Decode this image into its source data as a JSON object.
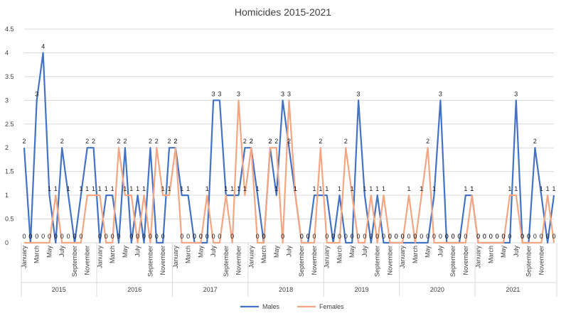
{
  "chart_data": {
    "type": "line",
    "title": "Homicides 2015-2021",
    "xlabel": "",
    "ylabel": "",
    "ylim": [
      0,
      4.5
    ],
    "yticks": [
      "0",
      "0.5",
      "1",
      "1.5",
      "2",
      "2.5",
      "3",
      "3.5",
      "4",
      "4.5"
    ],
    "years": [
      "2015",
      "2016",
      "2017",
      "2018",
      "2019",
      "2020",
      "2021"
    ],
    "month_tick_labels": [
      "January",
      "March",
      "May",
      "July",
      "September",
      "November"
    ],
    "grid": true,
    "legend_position": "bottom",
    "series": [
      {
        "name": "Males",
        "color": "#4472C4",
        "values": [
          2,
          0,
          3,
          4,
          1,
          0,
          2,
          1,
          0,
          1,
          2,
          2,
          0,
          1,
          1,
          0,
          2,
          0,
          1,
          0,
          2,
          0,
          0,
          2,
          2,
          1,
          1,
          0,
          0,
          0,
          3,
          3,
          1,
          1,
          1,
          2,
          2,
          1,
          0,
          2,
          1,
          3,
          2,
          1,
          0,
          0,
          1,
          1,
          1,
          0,
          1,
          0,
          0,
          3,
          1,
          0,
          1,
          0,
          0,
          0,
          0,
          0,
          0,
          0,
          0,
          1,
          3,
          0,
          0,
          0,
          1,
          1,
          0,
          0,
          0,
          0,
          0,
          0,
          3,
          0,
          0,
          2,
          1,
          0,
          1
        ]
      },
      {
        "name": "Females",
        "color": "#F4A582",
        "values": [
          0,
          0,
          0,
          0,
          0,
          1,
          0,
          0,
          0,
          0,
          1,
          1,
          1,
          0,
          0,
          2,
          1,
          1,
          0,
          1,
          0,
          2,
          1,
          1,
          2,
          0,
          0,
          0,
          0,
          1,
          0,
          0,
          1,
          0,
          3,
          1,
          2,
          0,
          0,
          2,
          2,
          0,
          3,
          1,
          0,
          0,
          0,
          2,
          0,
          0,
          0,
          2,
          1,
          0,
          0,
          1,
          0,
          1,
          0,
          0,
          0,
          1,
          0,
          1,
          2,
          0,
          0,
          0,
          0,
          0,
          0,
          1,
          0,
          0,
          0,
          0,
          0,
          1,
          1,
          0,
          0,
          0,
          0,
          1,
          0
        ]
      }
    ]
  }
}
